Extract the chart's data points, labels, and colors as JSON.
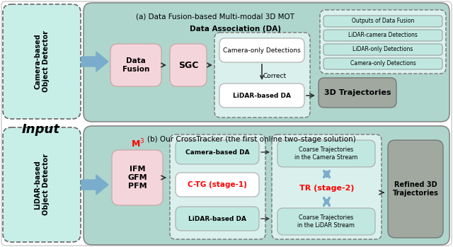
{
  "fig_width": 6.4,
  "fig_height": 3.49,
  "bg_color": "#ffffff",
  "panel_bg": "#aed6cc",
  "det_box_bg": "#c8eee8",
  "det_box_ec": "#666666",
  "pink_bg": "#f5d5dc",
  "white_box": "#ffffff",
  "gray_box": "#a0a8a0",
  "light_teal_box": "#c0e8e0",
  "legend_line_bg": "#c0e8e0",
  "arrow_blue": "#7aadcc",
  "input_label": "Input",
  "panel_a_title": "(a) Data Fusion-based Multi-modal 3D MOT",
  "panel_a_da_label": "Data Association (DA)",
  "panel_b_title": "(b) Our CrossTracker (the first online two-stage solution)",
  "legend_items": [
    "Outputs of Data Fusion",
    "LiDAR-camera Detections",
    "LiDAR-only Detections",
    "Camera-only Detections"
  ]
}
